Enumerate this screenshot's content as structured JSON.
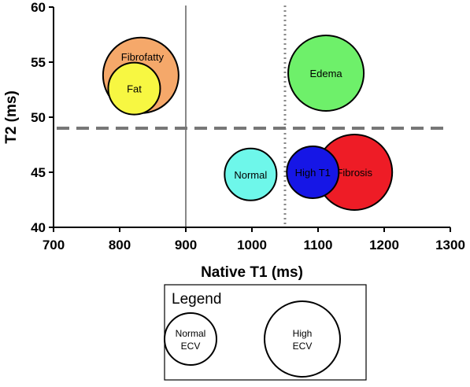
{
  "chart_data": {
    "type": "scatter",
    "xlabel": "Native T1 (ms)",
    "ylabel": "T2 (ms)",
    "xlim": [
      700,
      1300
    ],
    "ylim": [
      40,
      60
    ],
    "xticks": [
      "700",
      "800",
      "900",
      "1000",
      "1100",
      "1200",
      "1300"
    ],
    "yticks": [
      "40",
      "45",
      "50",
      "55",
      "60"
    ],
    "reference_lines": [
      {
        "orientation": "vertical",
        "value": 900,
        "style": "solid",
        "color": "#888888"
      },
      {
        "orientation": "vertical",
        "value": 1050,
        "style": "dotted",
        "color": "#888888"
      },
      {
        "orientation": "horizontal",
        "value": 49,
        "style": "dashed",
        "color": "#777777"
      }
    ],
    "bubbles": [
      {
        "label": "Fibrofatty",
        "x": 832,
        "y": 53.8,
        "ecv": "high",
        "color": "#f5a86a"
      },
      {
        "label": "Fat",
        "x": 822,
        "y": 52.6,
        "ecv": "normal",
        "color": "#f7f742"
      },
      {
        "label": "Edema",
        "x": 1112,
        "y": 54.0,
        "ecv": "high",
        "color": "#6ef06a"
      },
      {
        "label": "Fibrosis",
        "x": 1155,
        "y": 45.0,
        "ecv": "high",
        "color": "#ee1c26"
      },
      {
        "label": "High T1",
        "x": 1092,
        "y": 45.0,
        "ecv": "normal",
        "color": "#1616e6"
      },
      {
        "label": "Normal",
        "x": 998,
        "y": 44.8,
        "ecv": "normal",
        "color": "#6ef7ea"
      }
    ]
  },
  "legend": {
    "title": "Legend",
    "items": [
      {
        "line1": "Normal",
        "line2": "ECV",
        "ecv": "normal"
      },
      {
        "line1": "High",
        "line2": "ECV",
        "ecv": "high"
      }
    ]
  }
}
